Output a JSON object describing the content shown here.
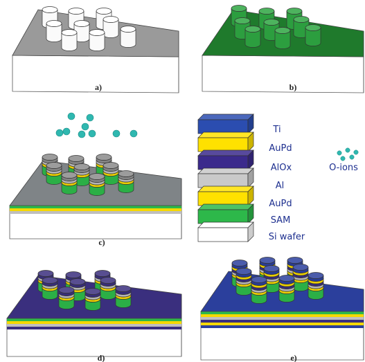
{
  "panels": [
    {
      "label": "a)",
      "top_color": "#9a9a9a",
      "pillar_layers": [
        "#ffffff"
      ],
      "stack": []
    },
    {
      "label": "b)",
      "top_color": "#1f7a2c",
      "pillar_layers": [
        "#2ea642"
      ],
      "stack": []
    },
    {
      "label": "c)",
      "top_color": "#7f8487",
      "pillar_layers": [
        "#2db84a",
        "#f5d800",
        "#bfbfbf",
        "#8a8a8a"
      ],
      "stack": [
        "#2db84a",
        "#f5d800",
        "#bfbfbf"
      ],
      "ions": true
    },
    {
      "label": "d)",
      "top_color": "#3a2f7e",
      "pillar_layers": [
        "#2db84a",
        "#f5d800",
        "#bfbfbf",
        "#3a2f7e"
      ],
      "stack": [
        "#2db84a",
        "#f5d800",
        "#bfbfbf",
        "#3a2f7e"
      ]
    },
    {
      "label": "e)",
      "top_color": "#2b3f9c",
      "pillar_layers": [
        "#2db84a",
        "#f5d800",
        "#bfbfbf",
        "#3a2f7e",
        "#f5d800",
        "#2b3f9c"
      ],
      "stack": [
        "#2db84a",
        "#f5d800",
        "#bfbfbf",
        "#3a2f7e",
        "#f5d800",
        "#2b3f9c"
      ]
    }
  ],
  "legend": {
    "items": [
      {
        "label": "Ti",
        "color": "#2b4db0"
      },
      {
        "label": "AuPd",
        "color": "#ffe100"
      },
      {
        "label": "AlOx",
        "color": "#3b2a8c"
      },
      {
        "label": "Al",
        "color": "#c9c9c9"
      },
      {
        "label": "AuPd",
        "color": "#ffe100"
      },
      {
        "label": "SAM",
        "color": "#2db84a"
      },
      {
        "label": "Si wafer",
        "color": "#ffffff"
      }
    ],
    "ions_label": "O-ions",
    "ion_color": "#2fb8b0"
  }
}
